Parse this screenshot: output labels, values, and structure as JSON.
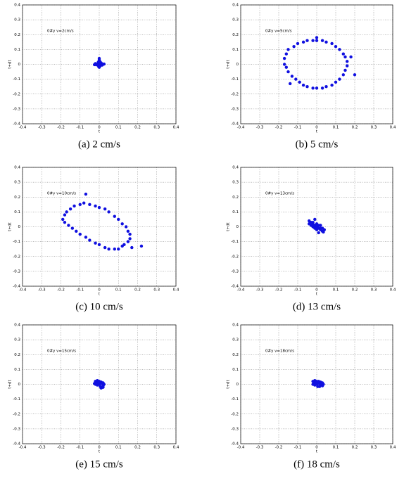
{
  "chart_data": [
    {
      "type": "scatter",
      "annotation": "0#y v=2cm/s",
      "caption": "(a) 2 cm/s",
      "xlabel": "t",
      "ylabel": "t+dt",
      "color": "#1010e0",
      "x": [
        0,
        0.01,
        -0.01,
        0,
        0,
        0.02,
        -0.02,
        0.005,
        -0.005,
        0.015,
        -0.015,
        0,
        0.003,
        -0.003,
        0.025,
        -0.025
      ],
      "values": [
        0,
        0.01,
        0,
        0.03,
        -0.02,
        0,
        0.005,
        -0.01,
        0.015,
        -0.005,
        -0.003,
        0.04,
        0.02,
        -0.015,
        0.002,
        -0.002
      ],
      "xlim": [
        -0.4,
        0.4
      ],
      "ylim": [
        -0.4,
        0.4
      ],
      "xticks": [
        -0.4,
        -0.3,
        -0.2,
        -0.1,
        0,
        0.1,
        0.2,
        0.3,
        0.4
      ],
      "yticks": [
        -0.4,
        -0.3,
        -0.2,
        -0.1,
        0,
        0.1,
        0.2,
        0.3,
        0.4
      ],
      "grid": true
    },
    {
      "type": "scatter",
      "annotation": "0#y v=5cm/s",
      "caption": "(b) 5 cm/s",
      "xlabel": "t",
      "ylabel": "t+dt",
      "color": "#1010e0",
      "x": [
        -0.15,
        -0.12,
        -0.1,
        -0.07,
        -0.05,
        -0.02,
        0,
        0.03,
        0.05,
        0.08,
        0.1,
        0.12,
        0.14,
        0.15,
        0.16,
        0.16,
        0.15,
        0.14,
        0.12,
        0.1,
        0.08,
        0.05,
        0.03,
        0,
        -0.02,
        -0.05,
        -0.07,
        -0.09,
        -0.11,
        -0.13,
        -0.15,
        -0.16,
        -0.17,
        -0.17,
        -0.16,
        0.2,
        0,
        0.18,
        -0.14
      ],
      "values": [
        0.1,
        0.12,
        0.14,
        0.15,
        0.16,
        0.16,
        0.16,
        0.16,
        0.15,
        0.14,
        0.12,
        0.1,
        0.07,
        0.05,
        0.02,
        -0.01,
        -0.04,
        -0.07,
        -0.1,
        -0.12,
        -0.14,
        -0.15,
        -0.16,
        -0.16,
        -0.16,
        -0.15,
        -0.14,
        -0.12,
        -0.1,
        -0.08,
        -0.05,
        -0.02,
        0,
        0.04,
        0.07,
        -0.07,
        0.18,
        0.05,
        -0.13
      ],
      "xlim": [
        -0.4,
        0.4
      ],
      "ylim": [
        -0.4,
        0.4
      ],
      "xticks": [
        -0.4,
        -0.3,
        -0.2,
        -0.1,
        0,
        0.1,
        0.2,
        0.3,
        0.4
      ],
      "yticks": [
        -0.4,
        -0.3,
        -0.2,
        -0.1,
        0,
        0.1,
        0.2,
        0.3,
        0.4
      ],
      "grid": true
    },
    {
      "type": "scatter",
      "annotation": "0#y v=10cm/s",
      "caption": "(c) 10 cm/s",
      "xlabel": "t",
      "ylabel": "t+dt",
      "color": "#1010e0",
      "x": [
        -0.18,
        -0.17,
        -0.15,
        -0.13,
        -0.1,
        -0.08,
        -0.05,
        -0.02,
        0,
        0.03,
        0.05,
        0.08,
        0.1,
        0.12,
        0.14,
        0.15,
        0.16,
        0.16,
        0.15,
        0.13,
        0.12,
        0.1,
        0.08,
        0.05,
        0.03,
        0,
        -0.02,
        -0.05,
        -0.07,
        -0.1,
        -0.12,
        -0.14,
        -0.16,
        -0.18,
        -0.19,
        0.22,
        -0.07,
        0.17
      ],
      "values": [
        0.08,
        0.1,
        0.12,
        0.14,
        0.15,
        0.16,
        0.15,
        0.14,
        0.13,
        0.12,
        0.1,
        0.07,
        0.05,
        0.02,
        0,
        -0.03,
        -0.05,
        -0.08,
        -0.1,
        -0.12,
        -0.13,
        -0.15,
        -0.15,
        -0.15,
        -0.14,
        -0.12,
        -0.11,
        -0.09,
        -0.07,
        -0.05,
        -0.03,
        -0.01,
        0.01,
        0.03,
        0.05,
        -0.13,
        0.22,
        -0.14
      ],
      "xlim": [
        -0.4,
        0.4
      ],
      "ylim": [
        -0.4,
        0.4
      ],
      "xticks": [
        -0.4,
        -0.3,
        -0.2,
        -0.1,
        0,
        0.1,
        0.2,
        0.3,
        0.4
      ],
      "yticks": [
        -0.4,
        -0.3,
        -0.2,
        -0.1,
        0,
        0.1,
        0.2,
        0.3,
        0.4
      ],
      "grid": true
    },
    {
      "type": "scatter",
      "annotation": "0#y v=13cm/s",
      "caption": "(d) 13 cm/s",
      "xlabel": "t",
      "ylabel": "t+dt",
      "color": "#1010e0",
      "x": [
        -0.04,
        -0.03,
        -0.02,
        -0.01,
        0,
        0.01,
        0.02,
        0.03,
        -0.03,
        -0.02,
        -0.01,
        0,
        0.01,
        0.02,
        0.03,
        -0.02,
        0,
        0.02,
        -0.04,
        0.04,
        -0.01,
        0.01,
        0.035,
        -0.035
      ],
      "values": [
        0.04,
        0.03,
        0.02,
        0.01,
        0,
        -0.01,
        -0.02,
        -0.03,
        0.01,
        0.03,
        -0.01,
        0.02,
        0.01,
        -0.01,
        -0.01,
        0,
        -0.02,
        0.01,
        0.02,
        -0.02,
        0.05,
        -0.04,
        -0.035,
        0.03
      ],
      "xlim": [
        -0.4,
        0.4
      ],
      "ylim": [
        -0.4,
        0.4
      ],
      "xticks": [
        -0.4,
        -0.3,
        -0.2,
        -0.1,
        0,
        0.1,
        0.2,
        0.3,
        0.4
      ],
      "yticks": [
        -0.4,
        -0.3,
        -0.2,
        -0.1,
        0,
        0.1,
        0.2,
        0.3,
        0.4
      ],
      "grid": true
    },
    {
      "type": "scatter",
      "annotation": "0#y v=15cm/s",
      "caption": "(e) 15 cm/s",
      "xlabel": "t",
      "ylabel": "t+dt",
      "color": "#1010e0",
      "x": [
        -0.02,
        -0.01,
        0,
        0.01,
        0.02,
        -0.02,
        -0.01,
        0,
        0.01,
        0.02,
        -0.015,
        0.005,
        0.015,
        -0.005,
        0.025,
        0.01,
        -0.025,
        0.02
      ],
      "values": [
        0.02,
        0.025,
        0.02,
        0.015,
        0.01,
        0,
        -0.005,
        0,
        0.005,
        -0.01,
        0.01,
        -0.015,
        -0.02,
        0.01,
        0,
        -0.025,
        0.005,
        -0.02
      ],
      "xlim": [
        -0.4,
        0.4
      ],
      "ylim": [
        -0.4,
        0.4
      ],
      "xticks": [
        -0.4,
        -0.3,
        -0.2,
        -0.1,
        0,
        0.1,
        0.2,
        0.3,
        0.4
      ],
      "yticks": [
        -0.4,
        -0.3,
        -0.2,
        -0.1,
        0,
        0.1,
        0.2,
        0.3,
        0.4
      ],
      "grid": true
    },
    {
      "type": "scatter",
      "annotation": "0#y v=18cm/s",
      "caption": "(f) 18 cm/s",
      "xlabel": "t",
      "ylabel": "t+dt",
      "color": "#1010e0",
      "x": [
        -0.02,
        -0.01,
        0,
        0.01,
        0.02,
        0.03,
        -0.02,
        -0.01,
        0,
        0.01,
        0.02,
        0.03,
        -0.015,
        0.005,
        0.015,
        0.025,
        -0.005,
        0.035
      ],
      "values": [
        0.02,
        0.025,
        0.02,
        0.02,
        0.015,
        0.01,
        0,
        -0.005,
        0,
        0.005,
        -0.005,
        -0.01,
        0.01,
        -0.015,
        -0.015,
        0.005,
        0.01,
        0
      ],
      "xlim": [
        -0.4,
        0.4
      ],
      "ylim": [
        -0.4,
        0.4
      ],
      "xticks": [
        -0.4,
        -0.3,
        -0.2,
        -0.1,
        0,
        0.1,
        0.2,
        0.3,
        0.4
      ],
      "yticks": [
        -0.4,
        -0.3,
        -0.2,
        -0.1,
        0,
        0.1,
        0.2,
        0.3,
        0.4
      ],
      "grid": true
    }
  ]
}
